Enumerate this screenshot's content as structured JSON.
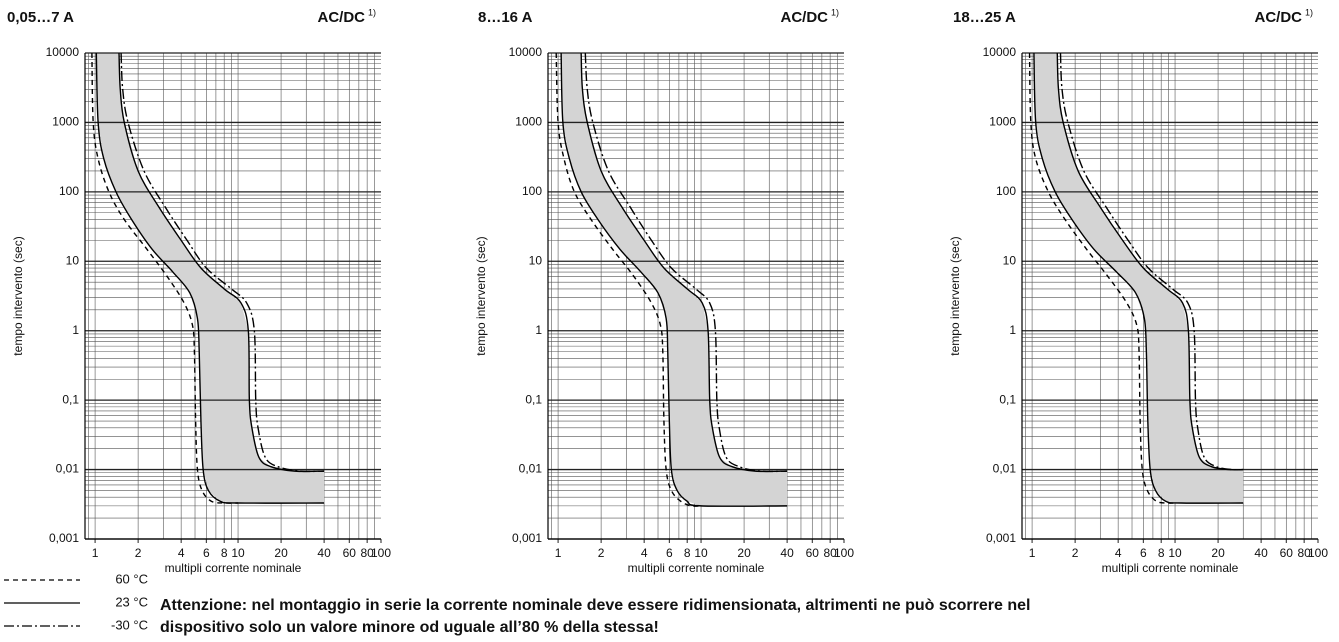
{
  "chart_data": [
    {
      "type": "line",
      "title": "0,05…7 A",
      "subtitle": "AC/DC",
      "footnote_mark": "1)",
      "y_label": "tempo intervento (sec)",
      "x_label": "multipli corrente nominale",
      "xlog": true,
      "ylog": true,
      "grid": true,
      "band_color": "#d4d4d4",
      "xlim": [
        0.85,
        100
      ],
      "ylim": [
        0.001,
        10000
      ],
      "xticks": [
        1,
        2,
        4,
        6,
        8,
        10,
        20,
        40,
        60,
        80,
        100
      ],
      "yticks": [
        {
          "value": 0.001,
          "label": "0,001"
        },
        {
          "value": 0.01,
          "label": "0,01"
        },
        {
          "value": 0.1,
          "label": "0,1"
        },
        1,
        10,
        100,
        1000,
        10000
      ],
      "series": [
        {
          "style": "dashed",
          "color": "#000000",
          "x": [
            0.95,
            0.97,
            1.05,
            1.25,
            1.6,
            2.3,
            3.2,
            4.2,
            4.8,
            4.95,
            5.05,
            5.2,
            5.6,
            6.5,
            8,
            10
          ],
          "values": [
            10000,
            1000,
            300,
            100,
            40,
            15,
            6,
            2.5,
            1.2,
            0.5,
            0.05,
            0.01,
            0.005,
            0.0035,
            0.0033,
            0.0033
          ]
        },
        {
          "style": "solid",
          "color": "#000000",
          "x": [
            1.02,
            1.05,
            1.15,
            1.4,
            1.8,
            2.5,
            3.5,
            4.6,
            5.2,
            5.35,
            5.5,
            5.7,
            6.2,
            7.5,
            10,
            40
          ],
          "values": [
            10000,
            1000,
            300,
            100,
            40,
            15,
            7,
            3.5,
            1.5,
            0.5,
            0.05,
            0.01,
            0.005,
            0.0035,
            0.0033,
            0.0033
          ]
        },
        {
          "style": "solid",
          "color": "#000000",
          "x": [
            1.47,
            1.5,
            1.6,
            2,
            2.8,
            4,
            5.5,
            8,
            10.5,
            11.8,
            12,
            12.5,
            14,
            17,
            25,
            40
          ],
          "values": [
            10000,
            3000,
            1000,
            200,
            60,
            20,
            8,
            4,
            2.5,
            1,
            0.1,
            0.04,
            0.015,
            0.011,
            0.0095,
            0.0095
          ]
        },
        {
          "style": "dashdot",
          "color": "#000000",
          "x": [
            1.52,
            1.56,
            1.7,
            2.2,
            3.1,
            4.4,
            6,
            9,
            11.5,
            13,
            13.3,
            13.8,
            15.5,
            19,
            27,
            40
          ],
          "values": [
            10000,
            3000,
            1000,
            200,
            60,
            20,
            8,
            4,
            2.5,
            1,
            0.1,
            0.04,
            0.015,
            0.011,
            0.0095,
            0.0095
          ]
        }
      ]
    },
    {
      "type": "line",
      "title": "8…16 A",
      "subtitle": "AC/DC",
      "footnote_mark": "1)",
      "y_label": "tempo intervento (sec)",
      "x_label": "multipli corrente nominale",
      "xlog": true,
      "ylog": true,
      "grid": true,
      "band_color": "#d4d4d4",
      "xlim": [
        0.85,
        100
      ],
      "ylim": [
        0.001,
        10000
      ],
      "xticks": [
        1,
        2,
        4,
        6,
        8,
        10,
        20,
        40,
        60,
        80,
        100
      ],
      "yticks": [
        {
          "value": 0.001,
          "label": "0,001"
        },
        {
          "value": 0.01,
          "label": "0,01"
        },
        {
          "value": 0.1,
          "label": "0,1"
        },
        1,
        10,
        100,
        1000,
        10000
      ],
      "series": [
        {
          "style": "dashed",
          "color": "#000000",
          "x": [
            0.97,
            1,
            1.1,
            1.3,
            1.7,
            2.4,
            3.4,
            4.5,
            5.2,
            5.4,
            5.5,
            5.7,
            6.2,
            7.2,
            8.5,
            10
          ],
          "values": [
            10000,
            1000,
            300,
            100,
            40,
            15,
            6,
            2.5,
            1.2,
            0.5,
            0.05,
            0.01,
            0.005,
            0.0035,
            0.003,
            0.003
          ]
        },
        {
          "style": "solid",
          "color": "#000000",
          "x": [
            1.05,
            1.08,
            1.2,
            1.45,
            1.9,
            2.7,
            3.8,
            5,
            5.7,
            5.85,
            6,
            6.2,
            6.8,
            8,
            10,
            40
          ],
          "values": [
            10000,
            1000,
            300,
            100,
            40,
            15,
            7,
            3.5,
            1.5,
            0.5,
            0.05,
            0.01,
            0.005,
            0.0035,
            0.003,
            0.003
          ]
        },
        {
          "style": "solid",
          "color": "#000000",
          "x": [
            1.45,
            1.48,
            1.6,
            2,
            2.8,
            4,
            5.5,
            8,
            10.2,
            11.2,
            11.5,
            12,
            13.5,
            16.5,
            24,
            40
          ],
          "values": [
            10000,
            3000,
            1000,
            200,
            60,
            20,
            8,
            4,
            2.5,
            1,
            0.1,
            0.04,
            0.015,
            0.011,
            0.0095,
            0.0095
          ]
        },
        {
          "style": "dashdot",
          "color": "#000000",
          "x": [
            1.55,
            1.6,
            1.75,
            2.25,
            3.2,
            4.5,
            6.2,
            9.2,
            11.5,
            12.6,
            12.9,
            13.4,
            15,
            18.5,
            26,
            40
          ],
          "values": [
            10000,
            3000,
            1000,
            200,
            60,
            20,
            8,
            4,
            2.5,
            1,
            0.1,
            0.04,
            0.015,
            0.011,
            0.0095,
            0.0095
          ]
        }
      ]
    },
    {
      "type": "line",
      "title": "18…25 A",
      "subtitle": "AC/DC",
      "footnote_mark": "1)",
      "y_label": "tempo intervento (sec)",
      "x_label": "multipli corrente nominale",
      "xlog": true,
      "ylog": true,
      "grid": true,
      "band_color": "#d4d4d4",
      "xlim": [
        0.85,
        100
      ],
      "ylim": [
        0.001,
        10000
      ],
      "xticks": [
        1,
        2,
        4,
        6,
        8,
        10,
        20,
        40,
        60,
        80,
        100
      ],
      "yticks": [
        {
          "value": 0.001,
          "label": "0,001"
        },
        {
          "value": 0.01,
          "label": "0,01"
        },
        {
          "value": 0.1,
          "label": "0,1"
        },
        1,
        10,
        100,
        1000,
        10000
      ],
      "series": [
        {
          "style": "dashed",
          "color": "#000000",
          "x": [
            0.96,
            0.98,
            1.06,
            1.3,
            1.7,
            2.4,
            3.4,
            4.6,
            5.4,
            5.6,
            5.7,
            5.9,
            6.4,
            7.4,
            8.8,
            10
          ],
          "values": [
            10000,
            1000,
            300,
            100,
            40,
            15,
            6,
            2.5,
            1.2,
            0.5,
            0.05,
            0.01,
            0.005,
            0.0035,
            0.0033,
            0.0033
          ]
        },
        {
          "style": "solid",
          "color": "#000000",
          "x": [
            1.03,
            1.06,
            1.18,
            1.45,
            1.9,
            2.7,
            3.9,
            5.3,
            6.1,
            6.3,
            6.45,
            6.7,
            7.3,
            8.6,
            11,
            30
          ],
          "values": [
            10000,
            1000,
            300,
            100,
            40,
            15,
            7,
            3.5,
            1.5,
            0.5,
            0.05,
            0.01,
            0.005,
            0.0035,
            0.0033,
            0.0033
          ]
        },
        {
          "style": "solid",
          "color": "#000000",
          "x": [
            1.5,
            1.53,
            1.65,
            2.1,
            3,
            4.3,
            6,
            8.8,
            11.3,
            12.4,
            12.7,
            13.2,
            14.8,
            18,
            24,
            30
          ],
          "values": [
            10000,
            3000,
            1000,
            200,
            60,
            20,
            8,
            4,
            2.5,
            1,
            0.1,
            0.04,
            0.015,
            0.011,
            0.01,
            0.01
          ]
        },
        {
          "style": "dashdot",
          "color": "#000000",
          "x": [
            1.58,
            1.62,
            1.78,
            2.3,
            3.3,
            4.7,
            6.5,
            9.6,
            12.3,
            13.6,
            13.9,
            14.4,
            16,
            19.5,
            25,
            30
          ],
          "values": [
            10000,
            3000,
            1000,
            200,
            60,
            20,
            8,
            4,
            2.5,
            1,
            0.1,
            0.04,
            0.015,
            0.011,
            0.01,
            0.01
          ]
        }
      ]
    }
  ],
  "legend": [
    {
      "label": "60 °C",
      "style": "dashed"
    },
    {
      "label": "23 °C",
      "style": "solid"
    },
    {
      "label": "-30 °C",
      "style": "dashdot"
    }
  ],
  "note": [
    "Attenzione: nel montaggio in serie la corrente nominale deve essere ridimensionata, altrimenti ne può scorrere nel",
    "dispositivo solo un valore minore od uguale all’80 % della stessa!"
  ]
}
